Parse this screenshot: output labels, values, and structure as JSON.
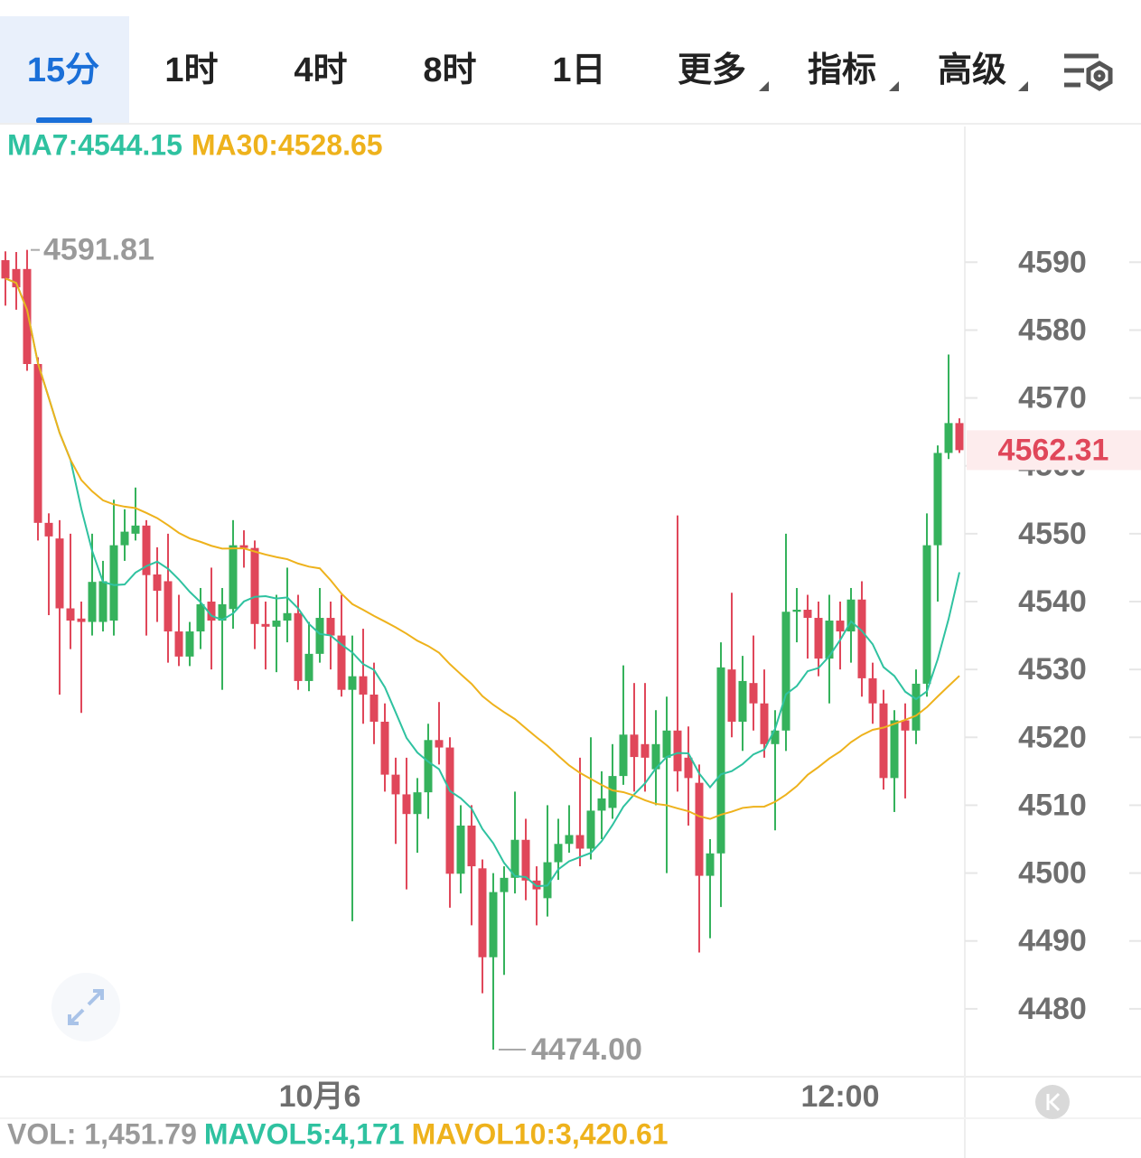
{
  "tabs": [
    "15分",
    "1时",
    "4时",
    "8时",
    "1日",
    "更多",
    "指标",
    "高级"
  ],
  "chart_data": {
    "type": "candlestick",
    "ma_labels": [
      {
        "text": "MA7:4544.15",
        "color": "#2fc2a0"
      },
      {
        "text": "MA30:4528.65",
        "color": "#eeb21c"
      }
    ],
    "open": [
      4590.3,
      4589,
      4589,
      4575,
      4551.6,
      4549.3,
      4539,
      4537.5,
      4537,
      4537,
      4537.2,
      4548.3,
      4550,
      4551.2,
      4544,
      4543,
      4535.6,
      4531.9,
      4535.6,
      4540,
      4537.2,
      4538.9,
      4548.3,
      4547.9,
      4536.7,
      4536.3,
      4537.2,
      4538.3,
      4528.3,
      4532.3,
      4537.6,
      4535,
      4527,
      4529,
      4526.3,
      4522.3,
      4514.5,
      4511.6,
      4508.7,
      4511.9,
      4519.6,
      4518.5,
      4499.9,
      4507,
      4500.7,
      4487.6,
      4497.2,
      4499.3,
      4504.9,
      4498.9,
      4496.3,
      4501.6,
      4504.3,
      4505.6,
      4503.6,
      4509.2,
      4509.6,
      4514.3,
      4520.4,
      4519,
      4515.3,
      4517,
      4521,
      4517,
      4513.3,
      4499.6,
      4502.9,
      4530,
      4522.3,
      4528,
      4525,
      4519,
      4521,
      4538.5,
      4538.8,
      4537.6,
      4531.6,
      4537.2,
      4535.6,
      4540.3,
      4528.7,
      4525,
      4514,
      4522.5,
      4521,
      4527.9,
      4548.3,
      4561.9,
      4566.3
    ],
    "high": [
      4591.6,
      4591.5,
      4591.81,
      4576,
      4553,
      4552,
      4550,
      4540,
      4550,
      4546,
      4555,
      4553.6,
      4556.8,
      4552,
      4548,
      4550,
      4541,
      4537,
      4542,
      4545,
      4542,
      4552,
      4550.5,
      4549,
      4540,
      4541,
      4545,
      4541,
      4537,
      4542,
      4540,
      4541,
      4535,
      4536,
      4531,
      4525,
      4517,
      4517,
      4514,
      4522,
      4525.2,
      4520,
      4510,
      4510,
      4502,
      4500,
      4501,
      4512,
      4508,
      4501,
      4510,
      4508,
      4510,
      4517,
      4520,
      4515,
      4519,
      4530.6,
      4528,
      4528,
      4524,
      4526,
      4552.7,
      4521.6,
      4516,
      4505,
      4534,
      4541.3,
      4532,
      4535,
      4530,
      4524,
      4550,
      4542,
      4541,
      4540,
      4541,
      4540,
      4542,
      4543,
      4531,
      4527,
      4524,
      4525,
      4530,
      4553,
      4563,
      4576.4,
      4567
    ],
    "low": [
      4583.6,
      4583,
      4574,
      4549,
      4538,
      4526.3,
      4533,
      4523.6,
      4535,
      4535.6,
      4535,
      4546,
      4549,
      4535,
      4537,
      4531,
      4530.5,
      4530.5,
      4533,
      4530,
      4527,
      4536,
      4545,
      4533,
      4530,
      4529.6,
      4534,
      4527,
      4526.8,
      4531,
      4530,
      4526,
      4492.9,
      4522,
      4519,
      4512,
      4504.3,
      4497.6,
      4503,
      4508,
      4516,
      4494.9,
      4497,
      4492.3,
      4482.3,
      4474,
      4485,
      4497,
      4496,
      4492.3,
      4493.6,
      4499,
      4503,
      4501,
      4502,
      4505,
      4508,
      4513,
      4512,
      4512,
      4510,
      4500,
      4512,
      4507,
      4488.3,
      4490.4,
      4495,
      4520,
      4518,
      4521,
      4517,
      4506.3,
      4518,
      4534,
      4531.6,
      4529,
      4525,
      4530,
      4531,
      4526,
      4522,
      4512.3,
      4509,
      4511,
      4519,
      4526,
      4540,
      4561,
      4561.9
    ],
    "close": [
      4587.6,
      4586.3,
      4575,
      4551.6,
      4549.6,
      4539,
      4537.2,
      4537,
      4542.9,
      4543,
      4548.3,
      4550.3,
      4551.2,
      4543.9,
      4541.6,
      4535.6,
      4531.9,
      4535.6,
      4539.6,
      4537.2,
      4539.6,
      4548.3,
      4547.9,
      4536.7,
      4536.3,
      4537.2,
      4538.3,
      4528.3,
      4532.3,
      4537.6,
      4535,
      4527,
      4529,
      4526.3,
      4522.3,
      4514.5,
      4511.6,
      4508.7,
      4511.9,
      4519.6,
      4518.5,
      4499.9,
      4507,
      4501,
      4487.6,
      4497.2,
      4499.3,
      4504.9,
      4498.9,
      4497.6,
      4501.6,
      4504.3,
      4505.6,
      4503.6,
      4509.2,
      4511,
      4514.3,
      4520.4,
      4517.1,
      4517,
      4519,
      4521,
      4515,
      4514,
      4499.6,
      4502.9,
      4530.3,
      4522.3,
      4528.3,
      4525,
      4519,
      4521,
      4538.5,
      4538.8,
      4537.6,
      4531.6,
      4537.2,
      4535.6,
      4540.3,
      4528.7,
      4525,
      4514,
      4522.5,
      4521,
      4527.9,
      4548.3,
      4561.9,
      4566.3,
      4562.31
    ],
    "up_color": "#35b25c",
    "down_color": "#e0475a",
    "ma_periods": [
      7,
      30
    ],
    "max_label": {
      "index": 2,
      "label": "4591.81"
    },
    "min_label": {
      "index": 45,
      "label": "4474.00"
    },
    "x_labels": [
      {
        "index": 29,
        "label": "10月6"
      },
      {
        "index": 77,
        "label": "12:00"
      }
    ],
    "ylim": [
      4470,
      4610
    ],
    "yticks": [
      4480,
      4490,
      4500,
      4510,
      4520,
      4530,
      4540,
      4550,
      4560,
      4570,
      4580,
      4590
    ],
    "volume_labels": [
      {
        "text": "VOL: 1,451.79",
        "color": "#9a9a9a"
      },
      {
        "text": "MAVOL5:4,171",
        "color": "#2fc2a0"
      },
      {
        "text": "MAVOL10:3,420.61",
        "color": "#eeb21c"
      }
    ]
  }
}
